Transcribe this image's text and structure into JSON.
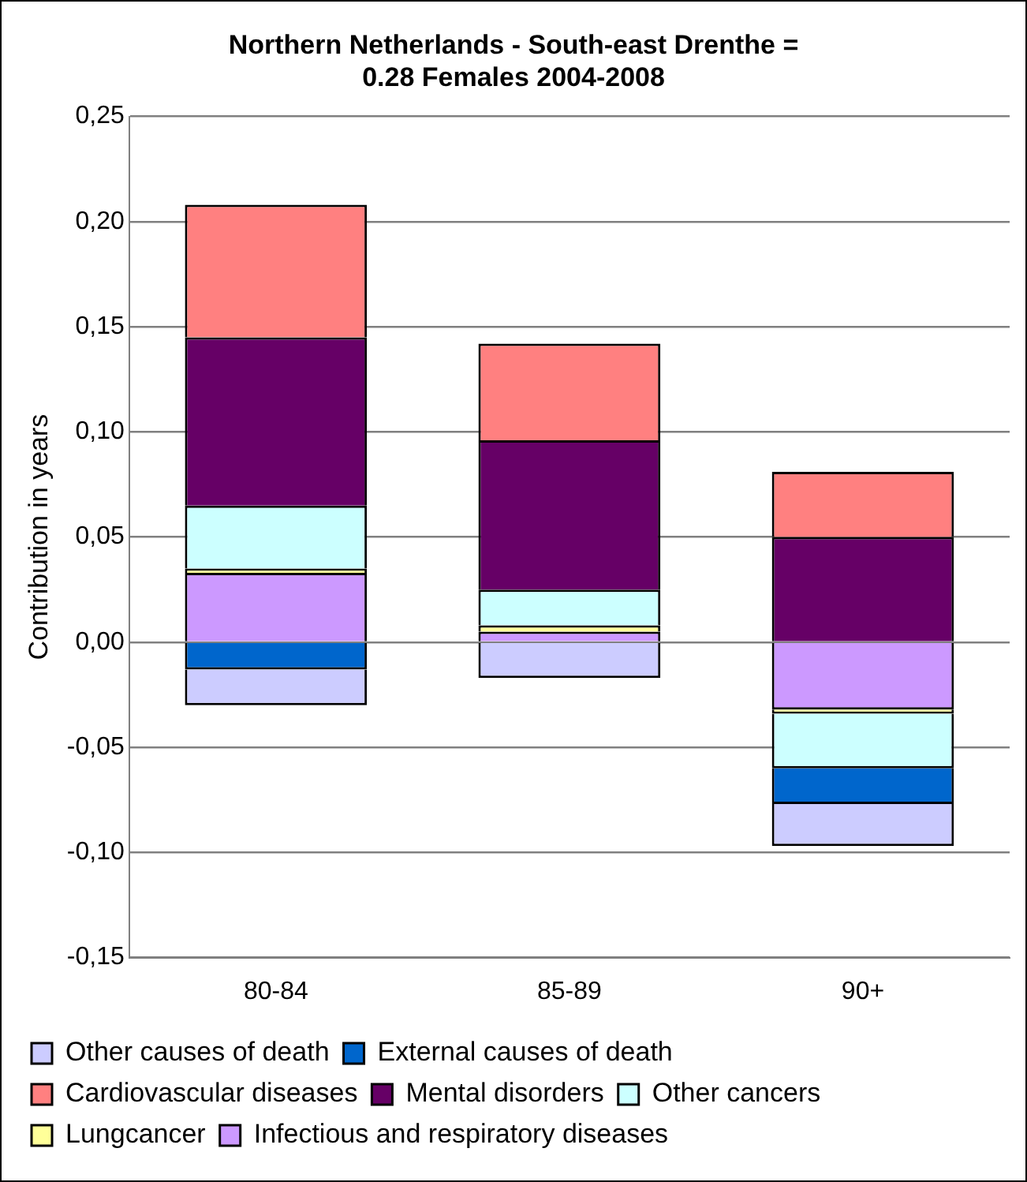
{
  "chart_data": {
    "type": "bar",
    "stacked": true,
    "title": "Northern Netherlands - South-east Drenthe =\n0.28 Females 2004-2008",
    "ylabel": "Contribution in years",
    "categories": [
      "80-84",
      "85-89",
      "90+"
    ],
    "series": [
      {
        "name": "Infectious and respiratory diseases",
        "color": "#cc99ff",
        "values": [
          0.033,
          0.005,
          -0.032
        ]
      },
      {
        "name": "Lungcancer",
        "color": "#ffff99",
        "values": [
          0.002,
          0.003,
          -0.002
        ]
      },
      {
        "name": "Other cancers",
        "color": "#ccffff",
        "values": [
          0.03,
          0.017,
          -0.026
        ]
      },
      {
        "name": "Mental disorders",
        "color": "#660066",
        "values": [
          0.08,
          0.071,
          0.05
        ]
      },
      {
        "name": "Cardiovascular diseases",
        "color": "#ff8080",
        "values": [
          0.063,
          0.046,
          0.031
        ]
      },
      {
        "name": "External causes of death",
        "color": "#0066cc",
        "values": [
          -0.013,
          null,
          -0.017
        ]
      },
      {
        "name": "Other causes of death",
        "color": "#ccccff",
        "values": [
          -0.017,
          -0.017,
          -0.02
        ]
      }
    ],
    "ylim": [
      -0.15,
      0.25
    ],
    "yticks": [
      {
        "value": -0.15,
        "label": "-0,15"
      },
      {
        "value": -0.1,
        "label": "-0,10"
      },
      {
        "value": -0.05,
        "label": "-0,05"
      },
      {
        "value": 0,
        "label": "0,00"
      },
      {
        "value": 0.05,
        "label": "0,05"
      },
      {
        "value": 0.1,
        "label": "0,10"
      },
      {
        "value": 0.15,
        "label": "0,15"
      },
      {
        "value": 0.2,
        "label": "0,20"
      },
      {
        "value": 0.25,
        "label": "0,25"
      }
    ],
    "grid": "y",
    "legend": "bottom"
  }
}
